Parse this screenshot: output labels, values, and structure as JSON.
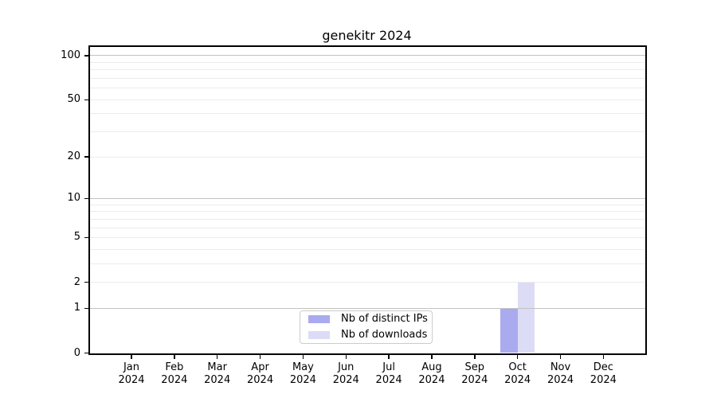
{
  "chart_data": {
    "type": "bar",
    "title": "genekitr 2024",
    "yscale": "log1p",
    "ylim": [
      0,
      115
    ],
    "yticks": [
      0,
      1,
      2,
      5,
      10,
      20,
      50,
      100
    ],
    "grid": "horizontal",
    "grid_minor_values": [
      2,
      3,
      4,
      5,
      6,
      7,
      8,
      9,
      20,
      30,
      40,
      50,
      60,
      70,
      80,
      90
    ],
    "grid_major_values": [
      1,
      10,
      100
    ],
    "x_tick_labels": [
      {
        "month": "Jan",
        "year": "2024"
      },
      {
        "month": "Feb",
        "year": "2024"
      },
      {
        "month": "Mar",
        "year": "2024"
      },
      {
        "month": "Apr",
        "year": "2024"
      },
      {
        "month": "May",
        "year": "2024"
      },
      {
        "month": "Jun",
        "year": "2024"
      },
      {
        "month": "Jul",
        "year": "2024"
      },
      {
        "month": "Aug",
        "year": "2024"
      },
      {
        "month": "Sep",
        "year": "2024"
      },
      {
        "month": "Oct",
        "year": "2024"
      },
      {
        "month": "Nov",
        "year": "2024"
      },
      {
        "month": "Dec",
        "year": "2024"
      }
    ],
    "series": [
      {
        "name": "Nb of distinct IPs",
        "color": "#aaaaee",
        "values": [
          0,
          0,
          0,
          0,
          0,
          0,
          0,
          0,
          0,
          1,
          0,
          0
        ]
      },
      {
        "name": "Nb of downloads",
        "color": "#dcdcf6",
        "values": [
          0,
          0,
          0,
          0,
          0,
          0,
          0,
          0,
          0,
          2,
          0,
          0
        ]
      }
    ],
    "legend_position": "lower center"
  },
  "colors": {
    "grid_minor": "#ececec",
    "grid_major": "#c2c2c2",
    "axis": "#000000",
    "background": "#ffffff"
  }
}
